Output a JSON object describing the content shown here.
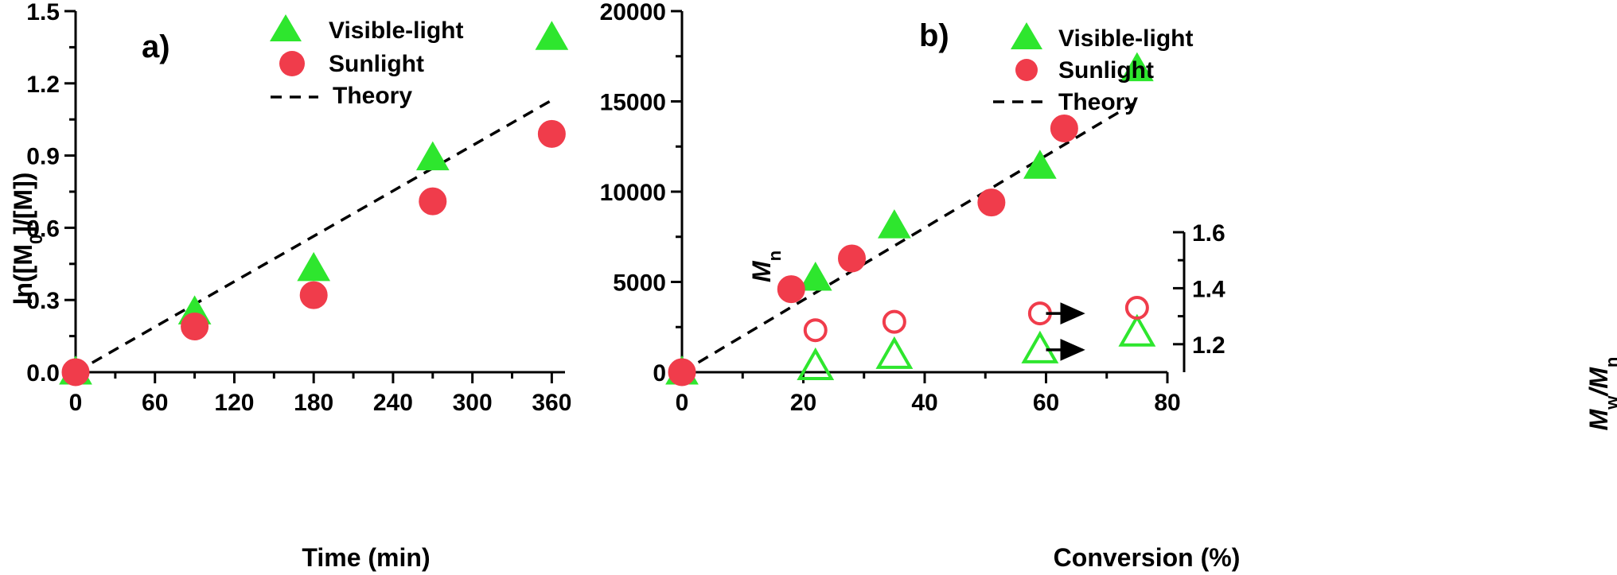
{
  "colors": {
    "visible": "#2ee62e",
    "sunlight": "#f03c4b",
    "theory": "#000000"
  },
  "chart_data": [
    {
      "type": "scatter",
      "panel_label": "a)",
      "xlabel": "Time (min)",
      "ylabel": {
        "main": "ln([M",
        "sub": "0",
        "tail": "]/[M])"
      },
      "xlim": [
        0,
        370
      ],
      "ylim": [
        0,
        1.5
      ],
      "xticks": [
        0,
        60,
        120,
        180,
        240,
        300,
        360
      ],
      "yticks": [
        0.0,
        0.3,
        0.6,
        0.9,
        1.2,
        1.5
      ],
      "ytick_labels": [
        "0.0",
        "0.3",
        "0.6",
        "0.9",
        "1.2",
        "1.5"
      ],
      "legend": [
        {
          "label": "Visible-light",
          "marker": "triangle"
        },
        {
          "label": "Sunlight",
          "marker": "circle"
        },
        {
          "label": "Theory",
          "marker": "dash"
        }
      ],
      "legend_placement": "top-center",
      "series": [
        {
          "name": "Visible-light",
          "marker": "triangle",
          "filled": true,
          "x": [
            0,
            90,
            180,
            270,
            360
          ],
          "y": [
            0.0,
            0.25,
            0.43,
            0.89,
            1.39
          ]
        },
        {
          "name": "Sunlight",
          "marker": "circle",
          "filled": true,
          "x": [
            0,
            90,
            180,
            270,
            360
          ],
          "y": [
            0.0,
            0.19,
            0.32,
            0.71,
            0.99
          ]
        },
        {
          "name": "Theory",
          "marker": "line",
          "x": [
            0,
            360
          ],
          "y": [
            0.0,
            1.13
          ]
        }
      ]
    },
    {
      "type": "scatter",
      "panel_label": "b)",
      "xlabel": "Conversion (%)",
      "ylabel": {
        "main": "M",
        "sub": "n"
      },
      "ylabel_right": {
        "main": "M",
        "sub1": "w",
        "mid": "/M",
        "sub2": "n"
      },
      "xlim": [
        0,
        80
      ],
      "ylim": [
        0,
        20000
      ],
      "y2lim": [
        1.1,
        1.6
      ],
      "xticks": [
        0,
        20,
        40,
        60,
        80
      ],
      "yticks": [
        0,
        5000,
        10000,
        15000,
        20000
      ],
      "y2ticks": [
        1.2,
        1.4,
        1.6
      ],
      "y2tick_labels": [
        "1.2",
        "1.4",
        "1.6"
      ],
      "legend": [
        {
          "label": "Visible-light",
          "marker": "triangle"
        },
        {
          "label": "Sunlight",
          "marker": "circle"
        },
        {
          "label": "Theory",
          "marker": "dash"
        }
      ],
      "legend_placement": "top-left",
      "series": [
        {
          "name": "Visible-light",
          "marker": "triangle",
          "filled": true,
          "axis": "left",
          "x": [
            0,
            22,
            35,
            59,
            75
          ],
          "y": [
            0,
            5200,
            8100,
            11400,
            16800
          ]
        },
        {
          "name": "Sunlight",
          "marker": "circle",
          "filled": true,
          "axis": "left",
          "x": [
            0,
            18,
            28,
            51,
            63
          ],
          "y": [
            0,
            4600,
            6300,
            9400,
            13500
          ]
        },
        {
          "name": "Theory",
          "marker": "line",
          "axis": "left",
          "x": [
            0,
            75
          ],
          "y": [
            0,
            15000
          ]
        },
        {
          "name": "Visible-light",
          "marker": "triangle",
          "filled": false,
          "axis": "right",
          "x": [
            22,
            35,
            59,
            75
          ],
          "y": [
            1.12,
            1.16,
            1.18,
            1.24
          ]
        },
        {
          "name": "Sunlight",
          "marker": "circle",
          "filled": false,
          "axis": "right",
          "x": [
            22,
            35,
            59,
            75
          ],
          "y": [
            1.25,
            1.28,
            1.31,
            1.33
          ]
        }
      ],
      "arrows": [
        {
          "from": [
            60,
            1.31
          ],
          "to": [
            66,
            1.31
          ],
          "axis": "right"
        },
        {
          "from": [
            60,
            1.18
          ],
          "to": [
            66,
            1.18
          ],
          "axis": "right"
        }
      ]
    }
  ]
}
